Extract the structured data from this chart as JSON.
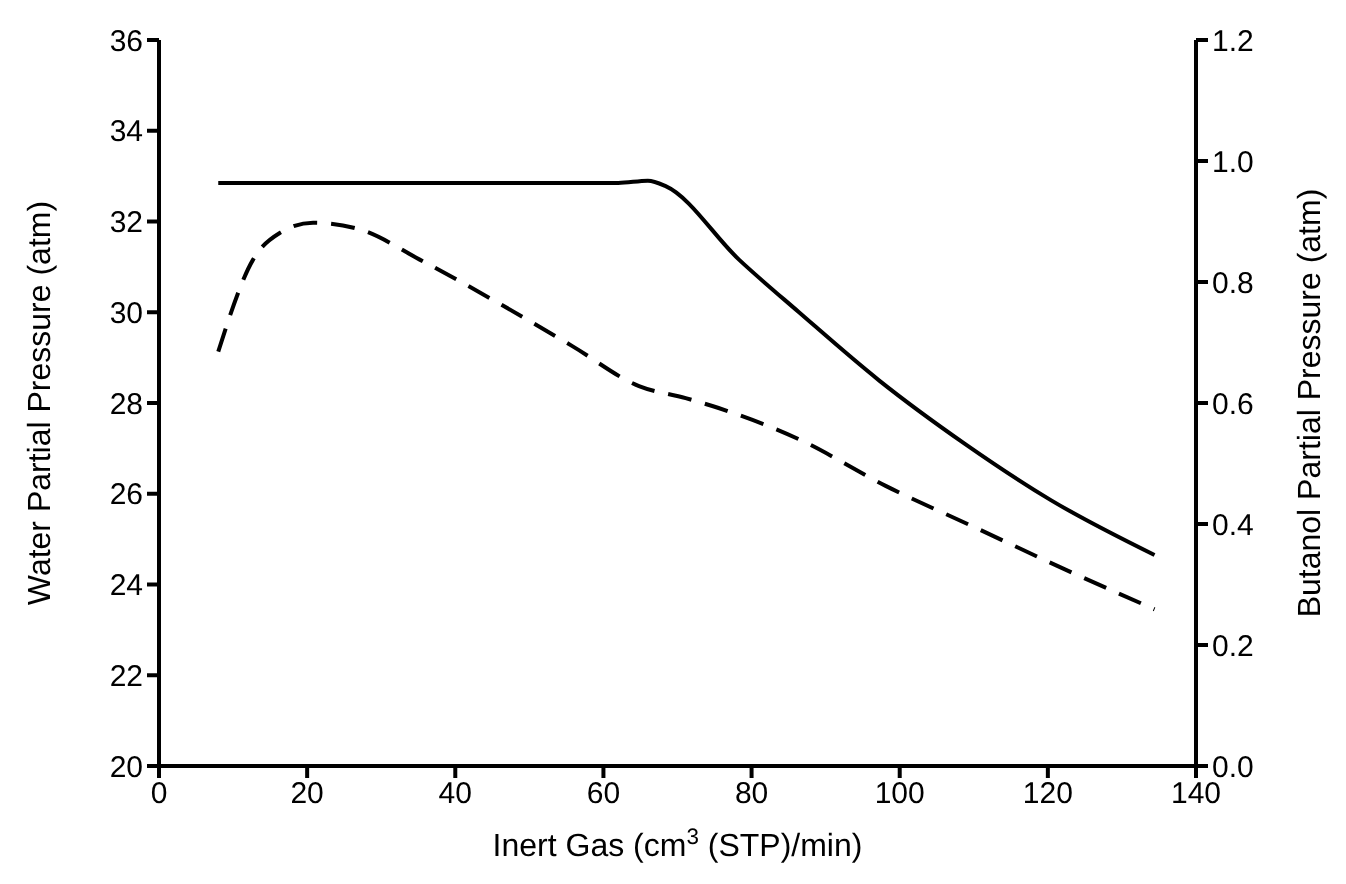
{
  "chart_data": {
    "type": "line",
    "xlabel": "Inert Gas (cm$^{3}$ (STP)/min)",
    "ylabel": "Water Partial Pressure (atm)",
    "y2label": "Butanol Partial Pressure (atm)",
    "xlim": [
      0,
      140
    ],
    "xticks": [
      0,
      20,
      40,
      60,
      80,
      100,
      120,
      140
    ],
    "ylim": [
      20,
      36
    ],
    "yticks": [
      20,
      22,
      24,
      26,
      28,
      30,
      32,
      34,
      36
    ],
    "y2lim": [
      0,
      1.2
    ],
    "y2ticks": [
      {
        "value": 0,
        "label": "0.0"
      },
      0.2,
      0.4,
      0.6,
      0.8,
      {
        "value": 1,
        "label": "1.0"
      },
      1.2
    ],
    "marker": "none",
    "series": [
      {
        "color": "#000000",
        "line_style": "solid",
        "x": [
          8,
          20,
          40,
          62,
          66,
          68.4,
          78.3,
          86.4,
          97.2,
          108.8,
          120.4,
          134.4
        ],
        "values": [
          32.85,
          32.85,
          32.85,
          32.85,
          32.9,
          32.78,
          31.16,
          30.0,
          28.5,
          27.1,
          25.86,
          24.65
        ]
      },
      {
        "color": "#000000",
        "line_style": "dashed",
        "axis": "y2",
        "x": [
          8,
          12.7,
          16.3,
          20.8,
          27.1,
          35.2,
          45,
          55.8,
          64.8,
          71.1,
          74.7,
          86.4,
          98.1,
          109.7,
          122.3,
          134.4
        ],
        "values": [
          0.685,
          0.837,
          0.881,
          0.898,
          0.887,
          0.837,
          0.771,
          0.694,
          0.628,
          0.608,
          0.595,
          0.54,
          0.463,
          0.397,
          0.325,
          0.259
        ]
      }
    ]
  }
}
